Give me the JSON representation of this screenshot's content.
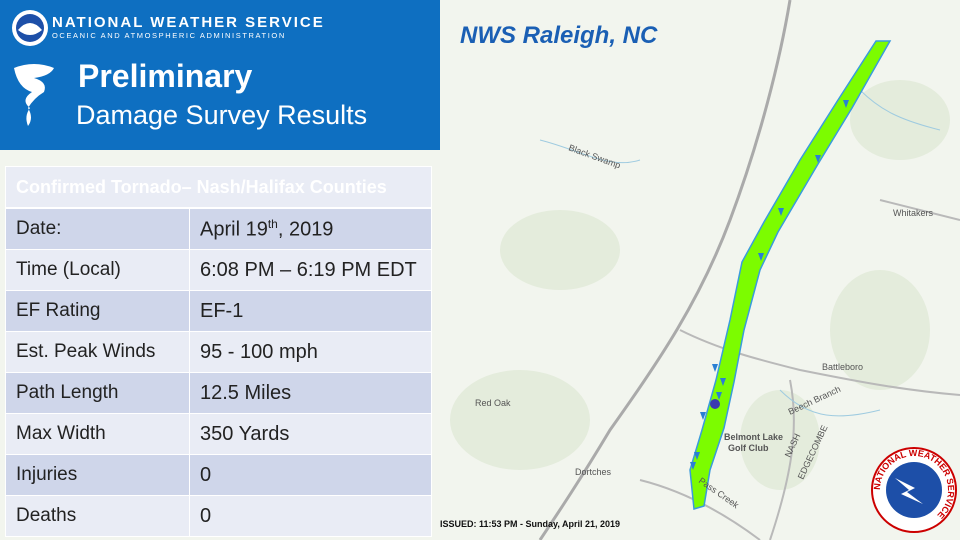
{
  "header": {
    "agency": "NATIONAL WEATHER SERVICE",
    "subagency": "OCEANIC AND ATMOSPHERIC ADMINISTRATION",
    "title_line1": "Preliminary",
    "title_line2": "Damage Survey Results"
  },
  "office": "NWS Raleigh, NC",
  "table": {
    "title": "Confirmed Tornado– Nash/Halifax Counties",
    "rows": [
      [
        "Date:",
        {
          "main": "April 19",
          "suffix": "th",
          "rest": ", 2019"
        }
      ],
      [
        "Time (Local)",
        "6:08 PM – 6:19 PM EDT"
      ],
      [
        "EF Rating",
        "EF-1"
      ],
      [
        "Est. Peak Winds",
        "95 - 100 mph"
      ],
      [
        "Path Length",
        "12.5 Miles"
      ],
      [
        "Max Width",
        "350 Yards"
      ],
      [
        "Injuries",
        "0"
      ],
      [
        "Deaths",
        "0"
      ]
    ]
  },
  "map_labels": [
    "Black Swamp",
    "Whitakers",
    "Battleboro",
    "Red Oak",
    "Dortches",
    "Belmont Lake",
    "Golf Club",
    "Beech Branch",
    "Pass Creek",
    "NASH",
    "EDGECOMBE"
  ],
  "issued": "ISSUED: 11:53 PM - Sunday, April 21, 2019",
  "seal_text": "NATIONAL WEATHER SERVICE"
}
